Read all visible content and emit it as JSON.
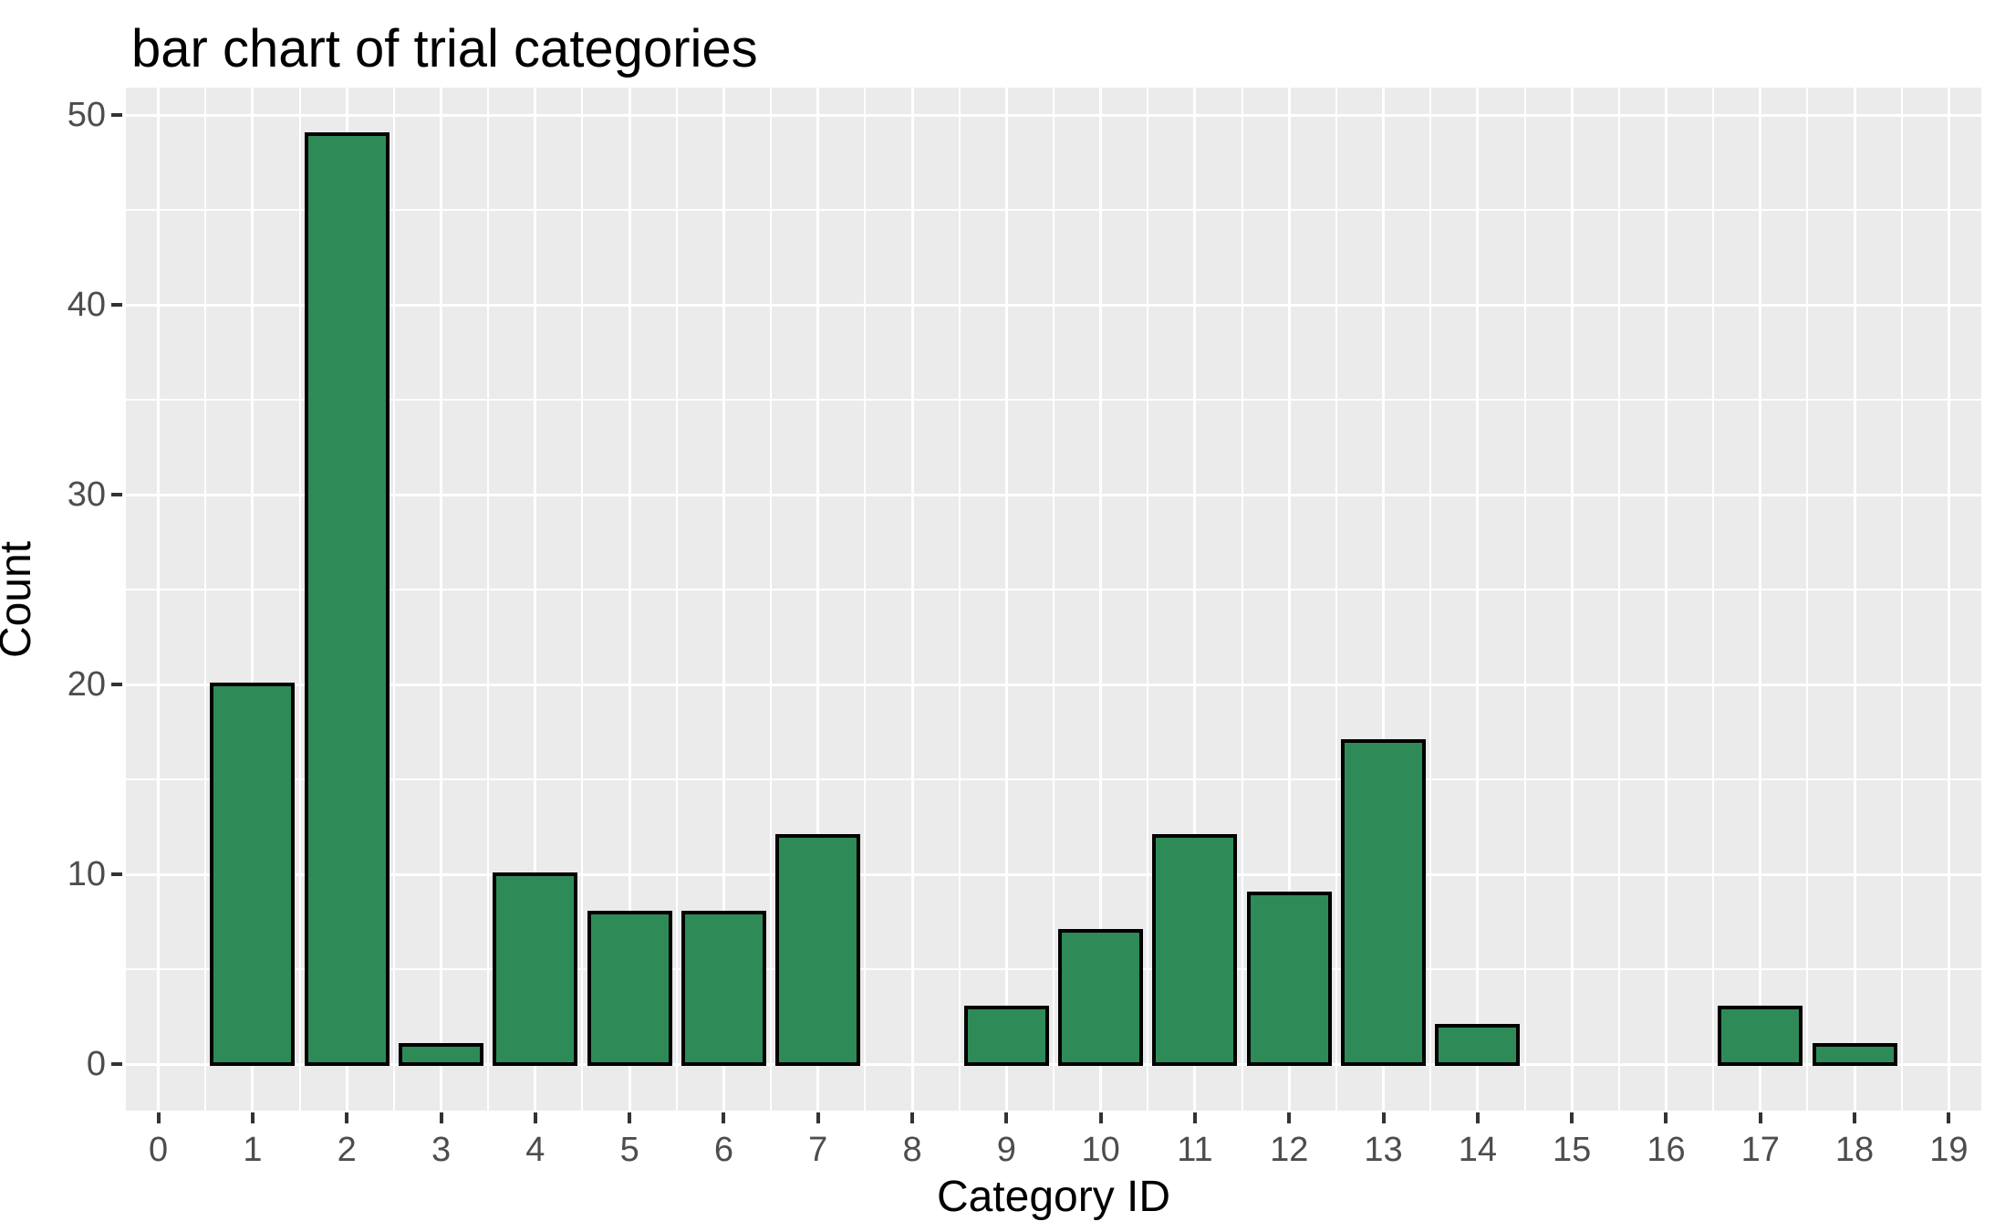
{
  "chart_data": {
    "type": "bar",
    "title": "bar chart of trial categories",
    "xlabel": "Category ID",
    "ylabel": "Count",
    "categories": [
      0,
      1,
      2,
      3,
      4,
      5,
      6,
      7,
      8,
      9,
      10,
      11,
      12,
      13,
      14,
      15,
      16,
      17,
      18,
      19
    ],
    "values": [
      0,
      20,
      49,
      1,
      10,
      8,
      8,
      12,
      0,
      3,
      7,
      12,
      9,
      17,
      2,
      0,
      0,
      3,
      1,
      0
    ],
    "x_ticks": [
      0,
      1,
      2,
      3,
      4,
      5,
      6,
      7,
      8,
      9,
      10,
      11,
      12,
      13,
      14,
      15,
      16,
      17,
      18,
      19
    ],
    "y_ticks": [
      0,
      10,
      20,
      30,
      40,
      50
    ],
    "y_minor_ticks": [
      5,
      15,
      25,
      35,
      45
    ],
    "xlim": [
      -0.345,
      19.345
    ],
    "ylim": [
      -2.45,
      51.45
    ],
    "bar_width": 0.9,
    "grid": "major-and-minor, white on grey panel",
    "legend": "none",
    "colors": {
      "bar_fill": "#2e8b57",
      "bar_stroke": "#000000",
      "panel_background": "#ebebeb",
      "gridline": "#ffffff",
      "tick_label": "#4d4d4d",
      "tick_mark": "#333333",
      "axis_title": "#000000",
      "title": "#000000",
      "figure_background": "#ffffff"
    }
  }
}
